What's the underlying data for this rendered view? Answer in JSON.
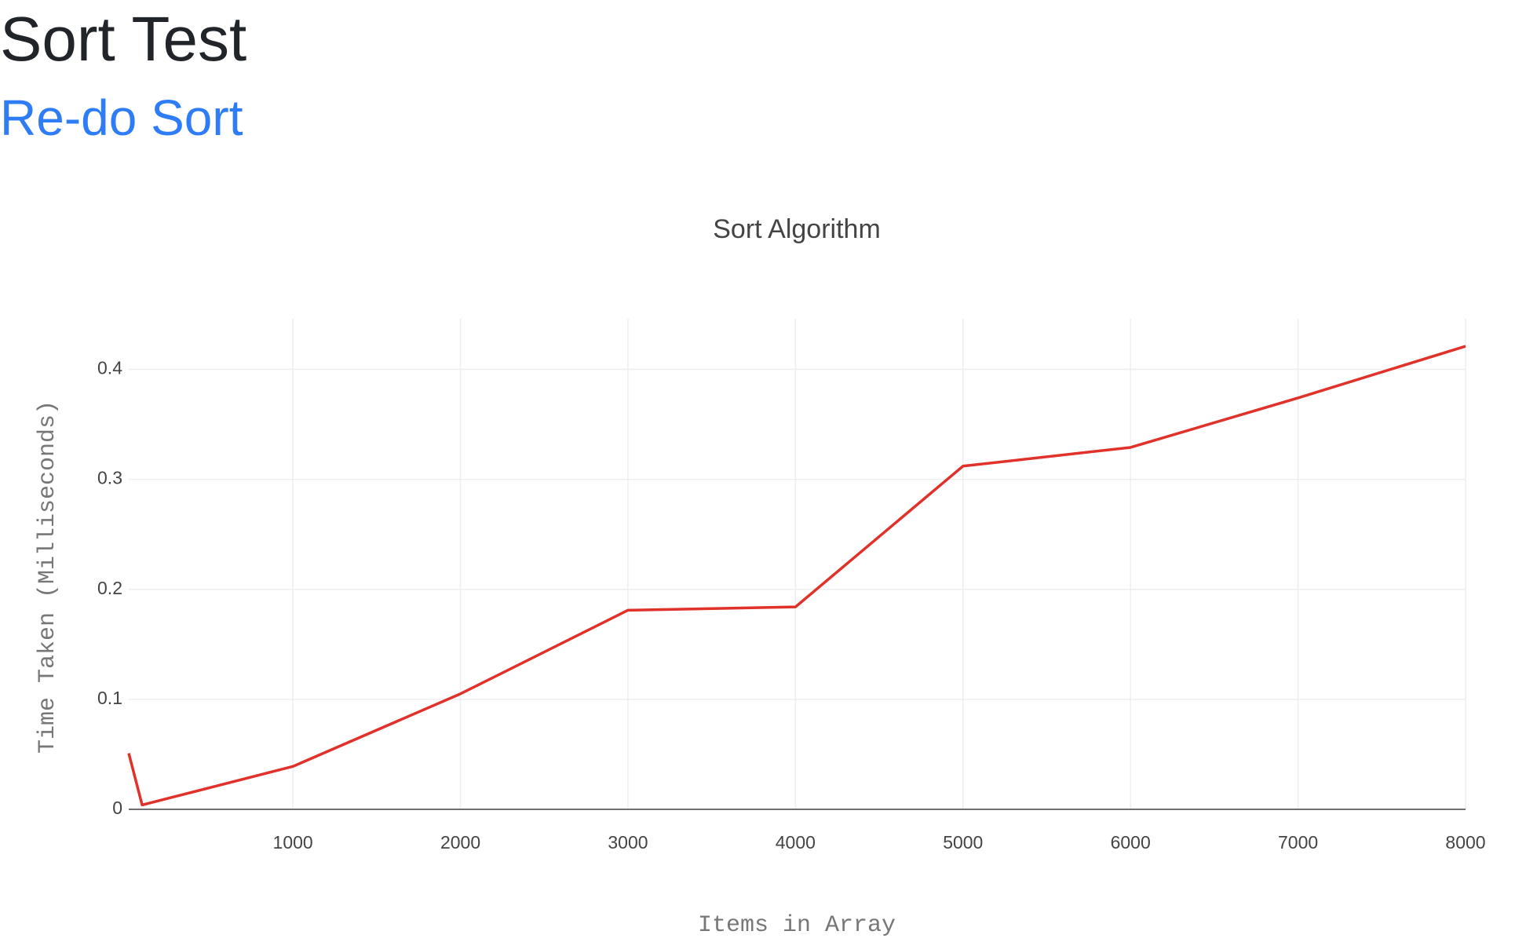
{
  "header": {
    "title": "Sort Test",
    "link": "Re-do Sort"
  },
  "chart_data": {
    "type": "line",
    "title": "Sort Algorithm",
    "x_label": "Items in Array",
    "y_label": "Time Taken (Milliseconds)",
    "x": [
      20,
      100,
      1000,
      2000,
      3000,
      4000,
      5000,
      6000,
      7000,
      8000
    ],
    "series": [
      {
        "name": "Sort",
        "color": "#e0312a",
        "values": [
          0.051,
          0.004,
          0.039,
          0.105,
          0.181,
          0.184,
          0.312,
          0.329,
          0.374,
          0.421
        ]
      }
    ],
    "xlim": [
      20,
      8000
    ],
    "xticks": [
      1000,
      2000,
      3000,
      4000,
      5000,
      6000,
      7000,
      8000
    ],
    "ylim": [
      0,
      0.446
    ],
    "yticks": [
      0,
      0.1,
      0.2,
      0.3,
      0.4
    ],
    "grid": true
  }
}
